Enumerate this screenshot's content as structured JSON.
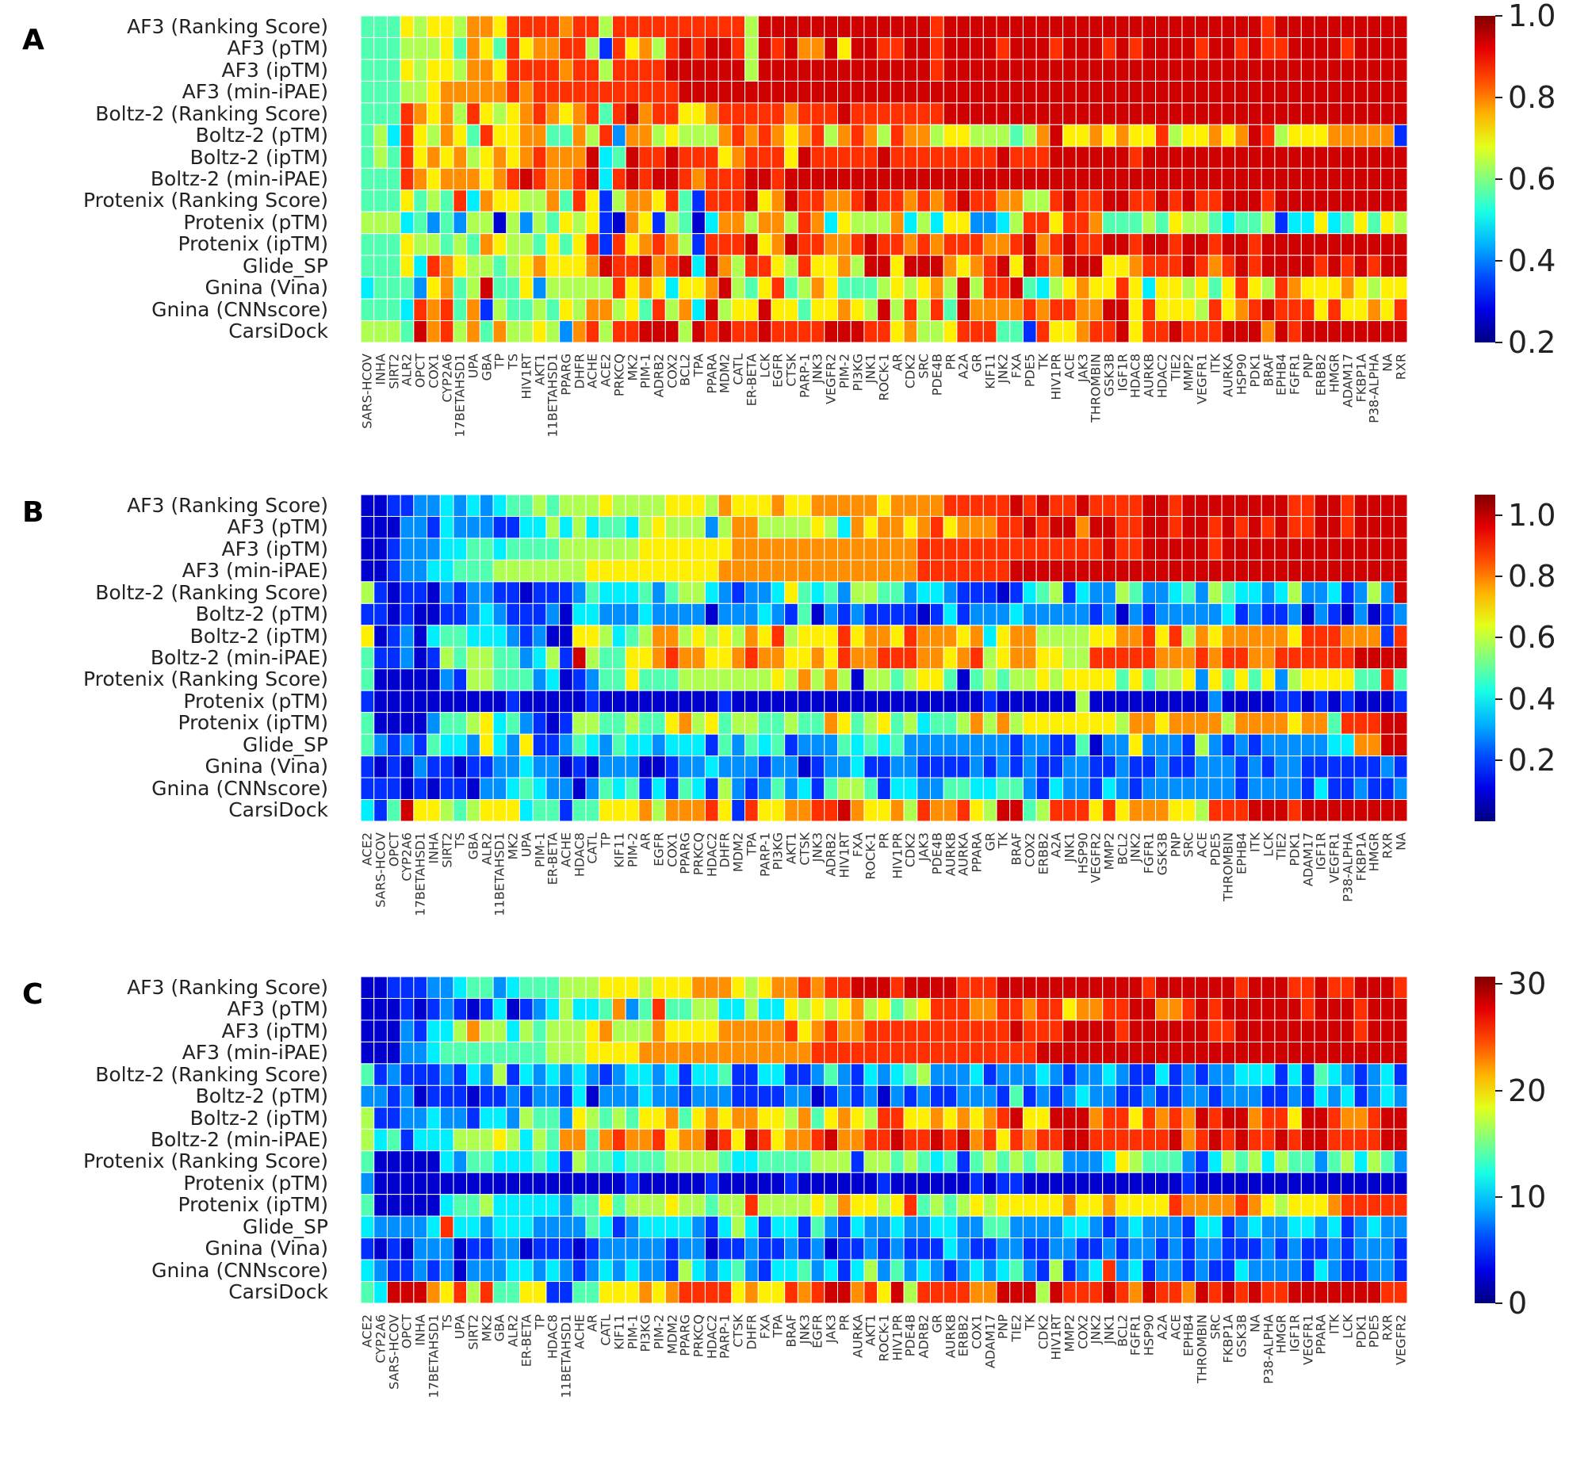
{
  "rows": [
    "AF3 (Ranking Score)",
    "AF3 (pTM)",
    "AF3 (ipTM)",
    "AF3 (min-iPAE)",
    "Boltz-2 (Ranking Score)",
    "Boltz-2 (pTM)",
    "Boltz-2 (ipTM)",
    "Boltz-2 (min-iPAE)",
    "Protenix (Ranking Score)",
    "Protenix (pTM)",
    "Protenix (ipTM)",
    "Glide_SP",
    "Gnina (Vina)",
    "Gnina (CNNscore)",
    "CarsiDock"
  ],
  "chart_data": [
    {
      "type": "heatmap",
      "panel": "A",
      "colormap": "jet",
      "vmin": 0.2,
      "vmax": 1.0,
      "colorbar_ticks": [
        "0.2",
        "0.4",
        "0.6",
        "0.8",
        "1.0"
      ],
      "colorbar_tick_values": [
        0.2,
        0.4,
        0.6,
        0.8,
        1.0
      ],
      "value_encoding": "each digit 0-9 is a quantized level from vmin (0) to vmax (9), approximate",
      "columns": [
        "SARS-HCOV",
        "INHA",
        "SIRT2",
        "ALR2",
        "OPCT",
        "COX1",
        "CYP2A6",
        "17BETAHSD1",
        "UPA",
        "GBA",
        "TP",
        "TS",
        "HIV1RT",
        "AKT1",
        "11BETAHSD1",
        "PPARG",
        "DHFR",
        "ACHE",
        "ACE2",
        "PRKCQ",
        "MK2",
        "PIM-1",
        "ADRB2",
        "COX2",
        "BCL2",
        "TPA",
        "PPARA",
        "MDM2",
        "CATL",
        "ER-BETA",
        "LCK",
        "EGFR",
        "CTSK",
        "PARP-1",
        "JNK3",
        "VEGFR2",
        "PIM-2",
        "PI3KG",
        "JNK1",
        "ROCK-1",
        "AR",
        "CDK2",
        "SRC",
        "PDE4B",
        "PR",
        "A2A",
        "GR",
        "KIF11",
        "JNK2",
        "FXA",
        "PDE5",
        "TK",
        "HIV1PR",
        "ACE",
        "JAK3",
        "THROMBIN",
        "GSK3B",
        "IGF1R",
        "HDAC8",
        "AURKB",
        "HDAC2",
        "TIE2",
        "MMP2",
        "VEGFR1",
        "ITK",
        "AURKA",
        "HSP90",
        "PDK1",
        "BRAF",
        "EPHB4",
        "FGFR1",
        "PNP",
        "ERBB2",
        "HMGR",
        "ADAM17",
        "FKBP1A",
        "P38-ALPHA",
        "NA",
        "RXR"
      ],
      "levels": [
        "4446566577 6888878858 8888888885 9999999999 9998999999 9999999999 9999999989 999999999",
        "4445556476 4867788518 6758989985 9897796998 8998999989 9989998989 9998998988 999989999",
        "4446566577 6888878858 8889999995 9999999999 9998999999 9999999999 9999999999 999999999",
        "4445567777 7878888888 8888999999 9999999999 9999999999 9999999999 9999999999 999999999",
        "4448767586 5678767848 9788667888 8878889888 8888999999 9999999999 9999999999 999999999",
        "4538657648 6677447582 7756555787 8767857875 8775665554 5796676766 8566767985 666777771",
        "4548676756 7678777934 9889888678 8869888889 8888888898 8899999989 9999999999 999999999",
        "4448767776 7898778938 9899878889 9899999999 9999999999 9999999999 9999999999 999999999",
        "4446454837 6655748615 7768418889 6798877898 8787898877 5589889988 9898899989 999999999",
        "5553424255 0525465610 7615403775 7758736555 7353662235 8868874445 4655434451 336346465",
        "4446554547 6554646818 6787518889 6798877898 8787888778 9789889989 9899899899 999999999",
        "4446387655 4567666798 8978939758 8658667599 6999767896 9879996678 8898789899 998989899",
        "3444267459 4462555558 6763667954 6845764445 6567595889 4356766863 6656468658 766676566",
        "4443878471 5445465775 6485739566 9664667659 5858497777 8788779968 6665867898 886866768",
        "5554978574 7556527858 8999598988 9888899988 6755688844 1866788968 8988899979 899999999"
      ]
    },
    {
      "type": "heatmap",
      "panel": "B",
      "colormap": "jet",
      "vmin": 0.0,
      "vmax": 1.067,
      "colorbar_ticks": [
        "0.2",
        "0.4",
        "0.6",
        "0.8",
        "1.0"
      ],
      "colorbar_tick_values": [
        0.2,
        0.4,
        0.6,
        0.8,
        1.0
      ],
      "value_encoding": "each digit 0-9 is a quantized level from vmin (0) to vmax (9), approximate",
      "columns": [
        "ACE2",
        "SARS-HCOV",
        "OPCT",
        "CYP2A6",
        "17BETAHSD1",
        "INHA",
        "SIRT2",
        "TS",
        "GBA",
        "ALR2",
        "11BETAHSD1",
        "MK2",
        "UPA",
        "PIM-1",
        "ER-BETA",
        "ACHE",
        "HDAC8",
        "CATL",
        "TP",
        "KIF11",
        "PIM-2",
        "AR",
        "EGFR",
        "COX1",
        "PPARG",
        "PRKCQ",
        "HDAC2",
        "DHFR",
        "MDM2",
        "TPA",
        "PARP-1",
        "PI3KG",
        "AKT1",
        "CTSK",
        "JNK3",
        "ADRB2",
        "HIV1RT",
        "FXA",
        "ROCK-1",
        "PR",
        "HIV1PR",
        "CDK2",
        "JAK3",
        "PDE4B",
        "AURKB",
        "AURKA",
        "PPARA",
        "GR",
        "TK",
        "BRAF",
        "COX2",
        "ERBB2",
        "A2A",
        "JNK1",
        "HSP90",
        "VEGFR2",
        "MMP2",
        "BCL2",
        "JNK2",
        "FGFR1",
        "GSK3B",
        "PNP",
        "SRC",
        "ACE",
        "PDE5",
        "THROMBIN",
        "EPHB4",
        "ITK",
        "LCK",
        "TIE2",
        "PDK1",
        "ADAM17",
        "IGF1R",
        "VEGFR1",
        "P38-ALPHA",
        "FKBP1A",
        "HMGR",
        "RXR",
        "NA"
      ],
      "levels": [
        "0011223232 3445455565 5556665766 6766777776 7777888889 8988988889 9899999999 889989999",
        "0002213222 1133535344 3565552577 5555653767 7678677788 9899799889 9899898989 889989999",
        "0012223344 3444455555 5666666677 7777777777 7788888888 8888889889 9999899999 999999999",
        "0012233444 5555555666 6666666777 7777777777 7788888889 9999999999 9999999999 999999999",
        "5101102122 1101112433 3424553212 2364342554 4233211101 3451322542 2342543323 522312529",
        "1101001123 2111203322 2322220222 3214021211 1101312223 2222212021 2222231211 202102012",
        "6012034433 3212006653 4577565657 6856668677 6877767367 7555566778 6857677777 688877718",
        "4112015455 4423519544 6678776678 7766768778 8877678567 7665588888 7778788778 888889999",
        "4000002155 4442301244 6444555555 5657575055 4566404545 5656666464 5562646462 566664484",
        "1000000000 0100000100 0000000100 0000000000 0000000100 0000500000 0000200001 101010001",
        "4000024456 3421015544 5446756455 4454476456 4534457575 6666666577 6777757777 677488899",
        "4212143326 3261124324 3323331424 3412224343 4222222221 2211402262 2215212122 222337799",
        "1010211011 2232201022 2001223222 1220122311 2211112121 2112211211 2112221212 211111121",
        "1110101102 2343220243 4131431521 2423145541 3322443344 2132213212 2222221222 213112112",
        "3149665456 6634414466 6757778618 6677889766 7587786599 4588868677 7665888999 899999999"
      ]
    },
    {
      "type": "heatmap",
      "panel": "C",
      "colormap": "jet",
      "vmin": 0,
      "vmax": 30.7,
      "colorbar_ticks": [
        "0",
        "10",
        "20",
        "30"
      ],
      "colorbar_tick_values": [
        0,
        10,
        20,
        30
      ],
      "value_encoding": "each digit 0-9 is a quantized level from vmin (0) to vmax (9), approximate",
      "columns": [
        "ACE2",
        "CYP2A6",
        "SARS-HCOV",
        "OPCT",
        "INHA",
        "17BETAHSD1",
        "TS",
        "UPA",
        "SIRT2",
        "MK2",
        "GBA",
        "ALR2",
        "ER-BETA",
        "TP",
        "HDAC8",
        "11BETAHSD1",
        "ACHE",
        "AR",
        "CATL",
        "KIF11",
        "PIM-1",
        "PI3KG",
        "PIM-2",
        "MDM2",
        "PPARG",
        "PRKCQ",
        "HDAC2",
        "PARP-1",
        "CTSK",
        "DHFR",
        "FXA",
        "TPA",
        "BRAF",
        "JNK3",
        "EGFR",
        "JAK3",
        "PR",
        "AURKA",
        "AKT1",
        "ROCK-1",
        "HIV1PR",
        "PDE4B",
        "ADRB2",
        "GR",
        "AURKB",
        "ERBB2",
        "COX1",
        "ADAM17",
        "PNP",
        "TIE2",
        "TK",
        "CDK2",
        "HIV1RT",
        "MMP2",
        "COX2",
        "JNK2",
        "JNK1",
        "BCL2",
        "FGFR1",
        "HSP90",
        "A2A",
        "ACE",
        "EPHB4",
        "THROMBIN",
        "SRC",
        "FKBP1A",
        "GSK3B",
        "NA",
        "P38-ALPHA",
        "HMGR",
        "IGF1R",
        "VEGFR1",
        "PPARA",
        "ITK",
        "LCK",
        "PDK1",
        "PDE5",
        "RXR",
        "VEGFR2"
      ],
      "levels": [
        "0011122344 2344455566 6566677765 6778788999 8999988899 9999999998 9999998999 889889998",
        "0001012101 3012353347 2484455335 3365656756 4568887788 7886778899 7789899999 989998999",
        "0002133575 5354555675 5576666777 7786787788 8888888889 8889999899 9999889999 999998999",
        "0002234444 4444555666 6777777777 7777888888 8888888888 8999999999 9999999999 999999999",
        "4121112132 5132323212 3323133411 3311242132 3452223122 2321223211 3121223331 314321231",
        "2212011101 1212213022 2322122211 1122012120 2121122214 1212322112 1122122211 213231232",
        "5112232213 3254426545 4667467677 6657467658 8667676789 6699978868 7879899788 699877899",
        "5341333555 6535477478 7786779869 8677897788 9889897868 7889988888 8978989889 899888899",
        "4000003244 3334315443 4445555433 4444555155 4543414545 4552223654 4421354535 442453542",
        "2000000000 0000000000 1000001000 0010000001 0000001011 0000000000 0010000000 000000000",
        "4000003445 3333324464 5556554558 5555657665 6845456566 6667667666 6877778765 666788888",
        "3222238332 3332222431 2333321353 1331421322 3223322442 2223321232 2213312322 332312322",
        "1010222011 2201110122 2221220112 1121201121 2111321122 1122112122 1212211121 211212221",
        "3211212022 2332321232 3221532342 1334231352 4232123234 2151238231 2212113222 213211221",
        "4399976858 4466114466 6767888867 6687899786 9588887799 9598889879 8879898988 999999988"
      ]
    }
  ]
}
